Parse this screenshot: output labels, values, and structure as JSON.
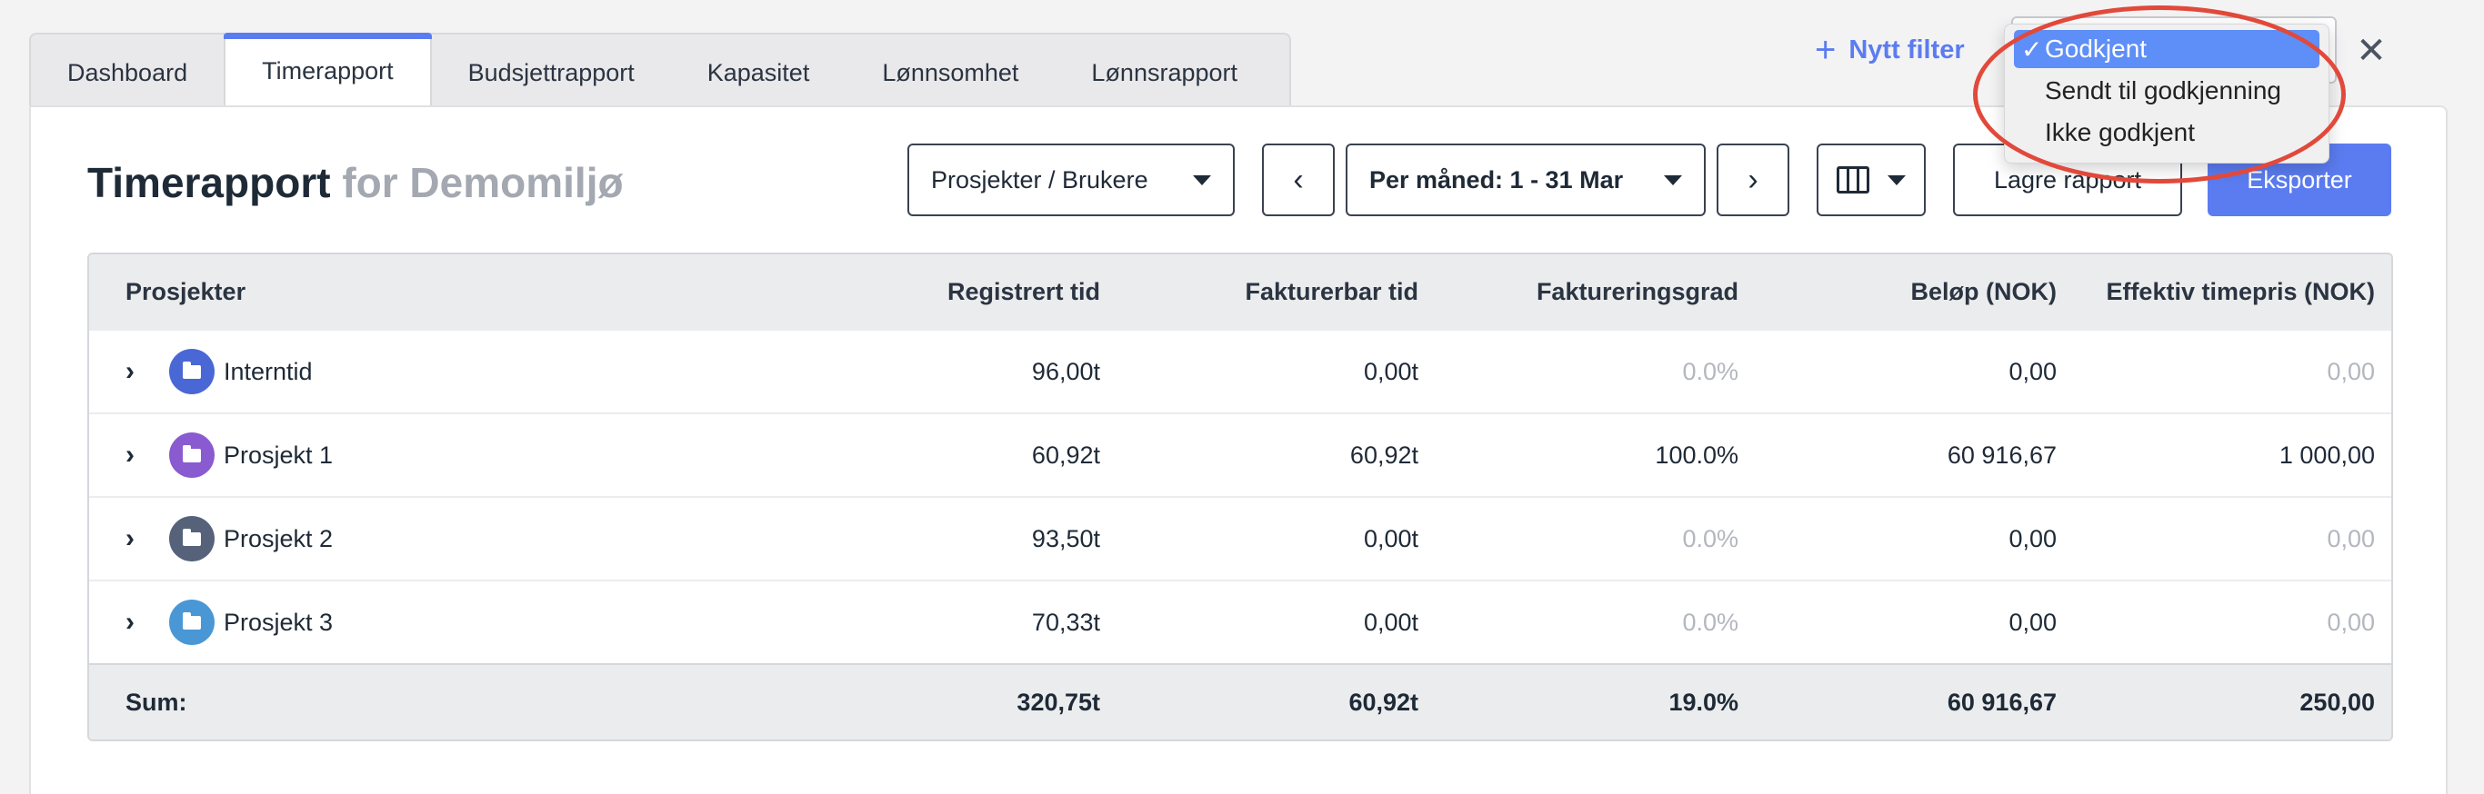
{
  "tabs": [
    {
      "label": "Dashboard"
    },
    {
      "label": "Timerapport"
    },
    {
      "label": "Budsjettrapport"
    },
    {
      "label": "Kapasitet"
    },
    {
      "label": "Lønnsomhet"
    },
    {
      "label": "Lønnsrapport"
    }
  ],
  "active_tab": "Timerapport",
  "header": {
    "new_filter_label": "Nytt filter",
    "title": "Timerapport",
    "title_suffix": "for Demomiljø"
  },
  "toolbar": {
    "grouping": "Prosjekter / Brukere",
    "period": "Per måned: 1 - 31 Mar",
    "save_label": "Lagre rapport",
    "export_label": "Eksporter"
  },
  "status_dropdown": {
    "options": [
      {
        "label": "Godkjent",
        "selected": true
      },
      {
        "label": "Sendt til godkjenning",
        "selected": false
      },
      {
        "label": "Ikke godkjent",
        "selected": false
      }
    ]
  },
  "table": {
    "columns": [
      "Prosjekter",
      "Registrert tid",
      "Fakturerbar tid",
      "Faktureringsgrad",
      "Beløp (NOK)",
      "Effektiv timepris (NOK)"
    ],
    "rows": [
      {
        "name": "Interntid",
        "registrert": "96,00t",
        "fakturerbar": "0,00t",
        "grad": "0.0%",
        "belop": "0,00",
        "timepris": "0,00",
        "color": "#4a67d6"
      },
      {
        "name": "Prosjekt 1",
        "registrert": "60,92t",
        "fakturerbar": "60,92t",
        "grad": "100.0%",
        "belop": "60 916,67",
        "timepris": "1 000,00",
        "color": "#8a5ad0"
      },
      {
        "name": "Prosjekt 2",
        "registrert": "93,50t",
        "fakturerbar": "0,00t",
        "grad": "0.0%",
        "belop": "0,00",
        "timepris": "0,00",
        "color": "#55627a"
      },
      {
        "name": "Prosjekt 3",
        "registrert": "70,33t",
        "fakturerbar": "0,00t",
        "grad": "0.0%",
        "belop": "0,00",
        "timepris": "0,00",
        "color": "#4a97d6"
      }
    ],
    "sum": {
      "label": "Sum:",
      "registrert": "320,75t",
      "fakturerbar": "60,92t",
      "grad": "19.0%",
      "belop": "60 916,67",
      "timepris": "250,00"
    }
  },
  "colors": {
    "accent": "#5b7cf0",
    "highlight": "#e1493b"
  }
}
